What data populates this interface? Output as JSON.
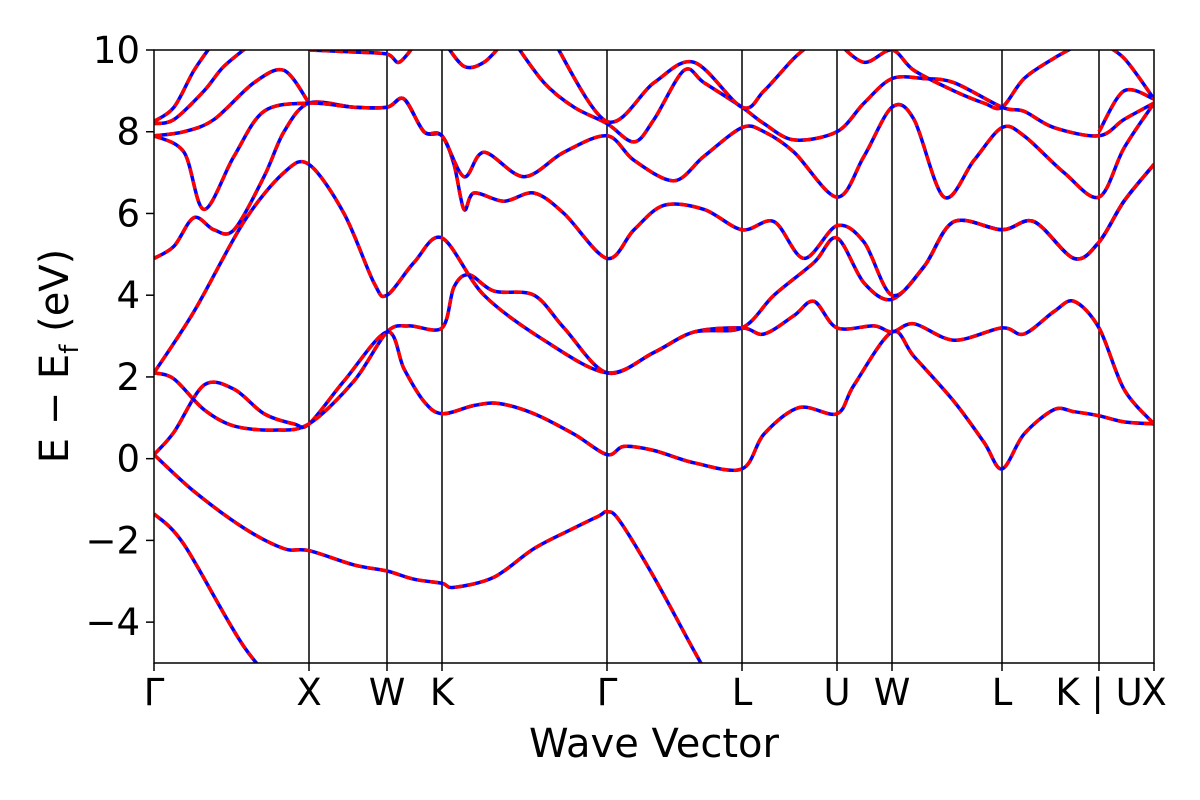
{
  "chart_data": {
    "type": "line",
    "title": "",
    "xlabel": "Wave Vector",
    "ylabel_parts": {
      "main": "E − E",
      "sub": "f",
      "unit": " (eV)"
    },
    "ylim": [
      -5,
      10
    ],
    "y_ticks": [
      "−4",
      "−2",
      "0",
      "2",
      "4",
      "6",
      "8",
      "10"
    ],
    "y_tick_values": [
      -4,
      -2,
      0,
      2,
      4,
      6,
      8,
      10
    ],
    "xlim": [
      0,
      1
    ],
    "kpoints": [
      {
        "label": "Γ",
        "x": 0.0
      },
      {
        "label": "X",
        "x": 0.155
      },
      {
        "label": "W",
        "x": 0.233
      },
      {
        "label": "K",
        "x": 0.288
      },
      {
        "label": "Γ",
        "x": 0.453
      },
      {
        "label": "L",
        "x": 0.588
      },
      {
        "label": "U",
        "x": 0.683
      },
      {
        "label": "W",
        "x": 0.738
      },
      {
        "label": "L",
        "x": 0.848
      },
      {
        "label": "K | U",
        "x": 0.945
      },
      {
        "label": "X",
        "x": 1.0
      }
    ],
    "colors": {
      "dft": "#0000ff",
      "fit": "#ff0000",
      "vline": "#000000"
    },
    "grid": false,
    "bands": [
      {
        "name": "",
        "values": [
          [
            0,
            -1.35
          ],
          [
            0.03,
            -2.1
          ],
          [
            0.09,
            -4.6
          ],
          [
            0.14,
            -6
          ]
        ]
      },
      {
        "name": "",
        "values": [
          [
            0,
            0.1
          ],
          [
            0.04,
            -0.8
          ],
          [
            0.09,
            -1.7
          ],
          [
            0.13,
            -2.2
          ],
          [
            0.155,
            -2.25
          ],
          [
            0.2,
            -2.6
          ],
          [
            0.233,
            -2.75
          ],
          [
            0.26,
            -2.95
          ],
          [
            0.288,
            -3.05
          ],
          [
            0.3,
            -3.15
          ],
          [
            0.34,
            -2.9
          ],
          [
            0.38,
            -2.2
          ],
          [
            0.42,
            -1.7
          ],
          [
            0.445,
            -1.4
          ],
          [
            0.453,
            -1.3
          ],
          [
            0.465,
            -1.5
          ],
          [
            0.5,
            -2.9
          ],
          [
            0.54,
            -4.7
          ],
          [
            0.57,
            -6
          ]
        ]
      },
      {
        "name": "",
        "values": [
          [
            0,
            0.1
          ],
          [
            0.02,
            0.65
          ],
          [
            0.05,
            1.8
          ],
          [
            0.08,
            1.7
          ],
          [
            0.11,
            1.1
          ],
          [
            0.14,
            0.85
          ],
          [
            0.155,
            0.85
          ],
          [
            0.19,
            1.9
          ],
          [
            0.233,
            3.1
          ],
          [
            0.25,
            2.2
          ],
          [
            0.27,
            1.4
          ],
          [
            0.288,
            1.1
          ],
          [
            0.32,
            1.3
          ],
          [
            0.345,
            1.35
          ],
          [
            0.38,
            1.1
          ],
          [
            0.42,
            0.6
          ],
          [
            0.453,
            0.1
          ],
          [
            0.47,
            0.3
          ],
          [
            0.5,
            0.2
          ],
          [
            0.54,
            -0.1
          ],
          [
            0.588,
            -0.25
          ],
          [
            0.61,
            0.6
          ],
          [
            0.645,
            1.25
          ],
          [
            0.683,
            1.1
          ],
          [
            0.7,
            1.8
          ],
          [
            0.738,
            3.1
          ],
          [
            0.76,
            2.5
          ],
          [
            0.8,
            1.4
          ],
          [
            0.83,
            0.4
          ],
          [
            0.848,
            -0.25
          ],
          [
            0.87,
            0.6
          ],
          [
            0.9,
            1.2
          ],
          [
            0.92,
            1.15
          ],
          [
            0.945,
            1.05
          ],
          [
            0.97,
            0.9
          ],
          [
            1.0,
            0.85
          ]
        ]
      },
      {
        "name": "",
        "values": [
          [
            0,
            2.1
          ],
          [
            0.02,
            1.95
          ],
          [
            0.05,
            1.2
          ],
          [
            0.08,
            0.8
          ],
          [
            0.12,
            0.7
          ],
          [
            0.155,
            0.85
          ],
          [
            0.2,
            1.9
          ],
          [
            0.233,
            3.1
          ],
          [
            0.255,
            3.25
          ],
          [
            0.288,
            3.2
          ],
          [
            0.3,
            4.2
          ],
          [
            0.315,
            4.5
          ],
          [
            0.34,
            4.1
          ],
          [
            0.38,
            4.0
          ],
          [
            0.41,
            3.2
          ],
          [
            0.453,
            2.1
          ],
          [
            0.5,
            2.6
          ],
          [
            0.54,
            3.1
          ],
          [
            0.588,
            3.2
          ],
          [
            0.61,
            3.05
          ],
          [
            0.64,
            3.5
          ],
          [
            0.66,
            3.85
          ],
          [
            0.683,
            3.2
          ],
          [
            0.72,
            3.25
          ],
          [
            0.738,
            3.1
          ],
          [
            0.76,
            3.3
          ],
          [
            0.8,
            2.9
          ],
          [
            0.848,
            3.2
          ],
          [
            0.87,
            3.05
          ],
          [
            0.9,
            3.6
          ],
          [
            0.92,
            3.85
          ],
          [
            0.945,
            3.2
          ],
          [
            0.97,
            1.7
          ],
          [
            1.0,
            0.85
          ]
        ]
      },
      {
        "name": "",
        "values": [
          [
            0,
            2.1
          ],
          [
            0.04,
            3.6
          ],
          [
            0.09,
            5.8
          ],
          [
            0.13,
            7.0
          ],
          [
            0.155,
            7.2
          ],
          [
            0.19,
            6.0
          ],
          [
            0.22,
            4.3
          ],
          [
            0.233,
            4.0
          ],
          [
            0.26,
            4.8
          ],
          [
            0.288,
            5.4
          ],
          [
            0.33,
            4.0
          ],
          [
            0.39,
            2.9
          ],
          [
            0.453,
            2.1
          ],
          [
            0.5,
            2.6
          ],
          [
            0.54,
            3.1
          ],
          [
            0.588,
            3.2
          ],
          [
            0.62,
            4.0
          ],
          [
            0.66,
            4.8
          ],
          [
            0.683,
            5.4
          ],
          [
            0.71,
            4.3
          ],
          [
            0.738,
            3.9
          ],
          [
            0.77,
            4.7
          ],
          [
            0.8,
            5.8
          ],
          [
            0.848,
            5.6
          ],
          [
            0.88,
            5.8
          ],
          [
            0.92,
            4.9
          ],
          [
            0.945,
            5.3
          ],
          [
            0.97,
            6.3
          ],
          [
            1.0,
            7.2
          ]
        ]
      },
      {
        "name": "",
        "values": [
          [
            0,
            4.9
          ],
          [
            0.02,
            5.2
          ],
          [
            0.04,
            5.9
          ],
          [
            0.06,
            5.6
          ],
          [
            0.08,
            5.6
          ],
          [
            0.11,
            6.9
          ],
          [
            0.13,
            8.0
          ],
          [
            0.155,
            8.7
          ],
          [
            0.2,
            8.6
          ],
          [
            0.233,
            8.6
          ],
          [
            0.25,
            8.8
          ],
          [
            0.27,
            8.0
          ],
          [
            0.288,
            7.9
          ],
          [
            0.3,
            7.2
          ],
          [
            0.31,
            6.1
          ],
          [
            0.32,
            6.5
          ],
          [
            0.35,
            6.3
          ],
          [
            0.38,
            6.5
          ],
          [
            0.41,
            6.0
          ],
          [
            0.453,
            4.9
          ],
          [
            0.48,
            5.6
          ],
          [
            0.51,
            6.2
          ],
          [
            0.55,
            6.1
          ],
          [
            0.588,
            5.6
          ],
          [
            0.62,
            5.8
          ],
          [
            0.65,
            4.9
          ],
          [
            0.683,
            5.7
          ],
          [
            0.71,
            5.3
          ],
          [
            0.738,
            4.0
          ],
          [
            0.77,
            4.7
          ],
          [
            0.8,
            5.8
          ],
          [
            0.848,
            5.6
          ],
          [
            0.88,
            5.8
          ],
          [
            0.92,
            4.9
          ],
          [
            0.945,
            5.3
          ],
          [
            0.97,
            6.3
          ],
          [
            1.0,
            7.2
          ]
        ]
      },
      {
        "name": "",
        "values": [
          [
            0,
            7.9
          ],
          [
            0.03,
            7.5
          ],
          [
            0.05,
            6.1
          ],
          [
            0.08,
            7.4
          ],
          [
            0.11,
            8.5
          ],
          [
            0.155,
            8.7
          ],
          [
            0.2,
            8.6
          ],
          [
            0.233,
            8.6
          ],
          [
            0.25,
            8.8
          ],
          [
            0.27,
            8.0
          ],
          [
            0.288,
            7.9
          ],
          [
            0.31,
            6.9
          ],
          [
            0.33,
            7.5
          ],
          [
            0.37,
            6.9
          ],
          [
            0.41,
            7.5
          ],
          [
            0.453,
            7.9
          ],
          [
            0.48,
            7.3
          ],
          [
            0.52,
            6.8
          ],
          [
            0.55,
            7.4
          ],
          [
            0.588,
            8.1
          ],
          [
            0.61,
            8.0
          ],
          [
            0.64,
            7.5
          ],
          [
            0.683,
            6.4
          ],
          [
            0.71,
            7.4
          ],
          [
            0.738,
            8.6
          ],
          [
            0.76,
            8.3
          ],
          [
            0.79,
            6.4
          ],
          [
            0.82,
            7.3
          ],
          [
            0.848,
            8.1
          ],
          [
            0.87,
            7.9
          ],
          [
            0.91,
            7.0
          ],
          [
            0.945,
            6.4
          ],
          [
            0.97,
            7.6
          ],
          [
            1.0,
            8.7
          ]
        ]
      },
      {
        "name": "",
        "values": [
          [
            0,
            7.9
          ],
          [
            0.03,
            8.0
          ],
          [
            0.06,
            8.3
          ],
          [
            0.1,
            9.2
          ],
          [
            0.13,
            9.5
          ],
          [
            0.155,
            8.7
          ]
        ]
      },
      {
        "name": "",
        "values": [
          [
            0,
            8.2
          ],
          [
            0.02,
            8.3
          ],
          [
            0.05,
            9.0
          ],
          [
            0.07,
            9.6
          ],
          [
            0.1,
            10.2
          ]
        ]
      },
      {
        "name": "",
        "values": [
          [
            0,
            8.25
          ],
          [
            0.02,
            8.6
          ],
          [
            0.04,
            9.5
          ],
          [
            0.06,
            10.2
          ]
        ]
      },
      {
        "name": "",
        "values": [
          [
            0.155,
            10.0
          ],
          [
            0.2,
            9.95
          ],
          [
            0.233,
            9.9
          ],
          [
            0.245,
            9.7
          ],
          [
            0.26,
            10.1
          ]
        ]
      },
      {
        "name": "",
        "values": [
          [
            0.29,
            10.2
          ],
          [
            0.31,
            9.6
          ],
          [
            0.33,
            9.7
          ],
          [
            0.35,
            10.2
          ]
        ]
      },
      {
        "name": "",
        "values": [
          [
            0.36,
            10.2
          ],
          [
            0.39,
            9.2
          ],
          [
            0.42,
            8.6
          ],
          [
            0.453,
            8.2
          ],
          [
            0.48,
            7.75
          ],
          [
            0.5,
            8.3
          ],
          [
            0.53,
            9.5
          ],
          [
            0.55,
            9.2
          ],
          [
            0.588,
            8.6
          ],
          [
            0.61,
            8.2
          ],
          [
            0.64,
            7.8
          ],
          [
            0.683,
            8.0
          ],
          [
            0.71,
            8.7
          ],
          [
            0.738,
            9.3
          ],
          [
            0.77,
            9.3
          ],
          [
            0.8,
            9.2
          ],
          [
            0.848,
            8.6
          ],
          [
            0.87,
            8.5
          ],
          [
            0.9,
            8.1
          ],
          [
            0.945,
            7.9
          ],
          [
            0.97,
            8.3
          ],
          [
            1.0,
            8.7
          ]
        ]
      },
      {
        "name": "",
        "values": [
          [
            0.4,
            10.2
          ],
          [
            0.453,
            8.25
          ],
          [
            0.5,
            9.2
          ],
          [
            0.54,
            9.7
          ],
          [
            0.588,
            8.6
          ],
          [
            0.61,
            9.0
          ],
          [
            0.64,
            9.8
          ],
          [
            0.66,
            10.2
          ]
        ]
      },
      {
        "name": "",
        "values": [
          [
            0.683,
            10.2
          ],
          [
            0.71,
            9.7
          ],
          [
            0.738,
            10.0
          ],
          [
            0.76,
            9.5
          ],
          [
            0.8,
            9.0
          ],
          [
            0.83,
            8.7
          ],
          [
            0.848,
            8.6
          ],
          [
            0.87,
            9.3
          ],
          [
            0.9,
            9.8
          ],
          [
            0.93,
            10.2
          ]
        ]
      },
      {
        "name": "",
        "values": [
          [
            0.945,
            8.0
          ],
          [
            0.97,
            9.0
          ],
          [
            1.0,
            8.8
          ]
        ]
      },
      {
        "name": "",
        "values": [
          [
            0.945,
            10.2
          ],
          [
            0.97,
            9.8
          ],
          [
            1.0,
            8.8
          ]
        ]
      }
    ]
  }
}
